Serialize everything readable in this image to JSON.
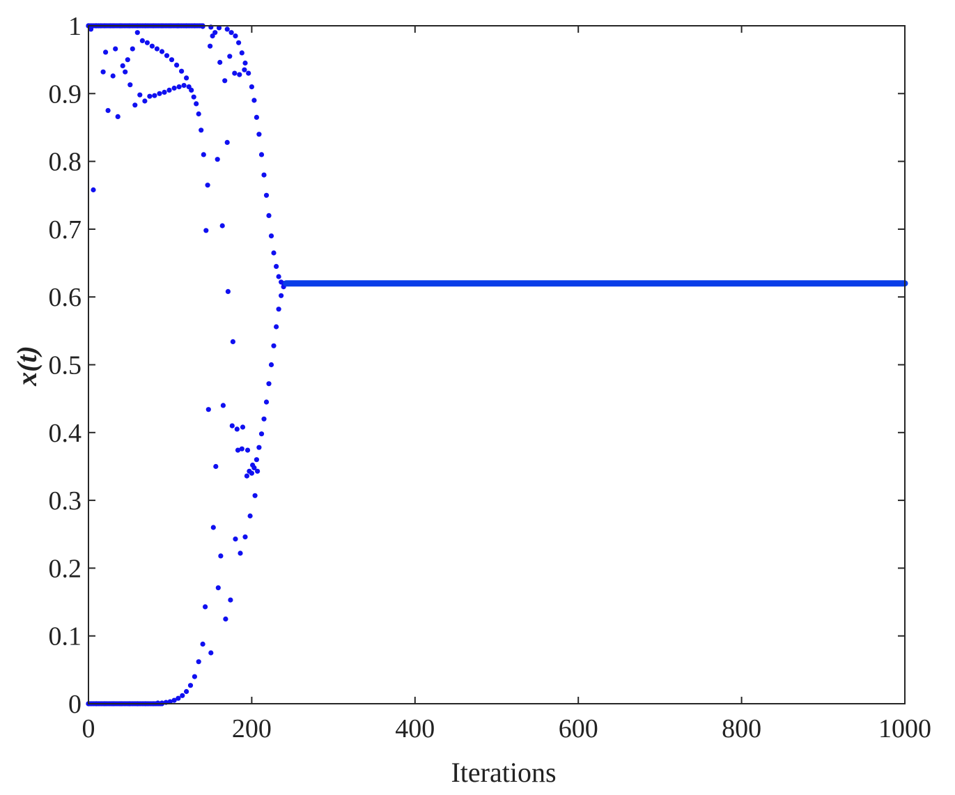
{
  "chart_data": {
    "type": "scatter",
    "title": "",
    "xlabel": "Iterations",
    "ylabel": "x(t)",
    "xlim": [
      0,
      1000
    ],
    "ylim": [
      0,
      1
    ],
    "xticks": [
      0,
      200,
      400,
      600,
      800,
      1000
    ],
    "xtick_labels": [
      "0",
      "200",
      "400",
      "600",
      "800",
      "1000"
    ],
    "yticks": [
      0,
      0.1,
      0.2,
      0.3,
      0.4,
      0.5,
      0.6,
      0.7,
      0.8,
      0.9,
      1
    ],
    "ytick_labels": [
      "0",
      "0.1",
      "0.2",
      "0.3",
      "0.4",
      "0.5",
      "0.6",
      "0.7",
      "0.8",
      "0.9",
      "1"
    ],
    "grid": false,
    "legend": "none",
    "marker_color": "#1010f0",
    "line_color": "#0a3ee8",
    "series": [
      {
        "points": [
          [
            0,
            1.0
          ],
          [
            3,
            0.995
          ],
          [
            6,
            0.758
          ],
          [
            9,
            1.0
          ],
          [
            12,
            1.0
          ],
          [
            15,
            1.0
          ],
          [
            18,
            0.932
          ],
          [
            21,
            0.961
          ],
          [
            24,
            0.875
          ],
          [
            27,
            1.0
          ],
          [
            30,
            0.926
          ],
          [
            33,
            0.966
          ],
          [
            36,
            0.866
          ],
          [
            39,
            1.0
          ],
          [
            42,
            0.941
          ],
          [
            45,
            0.932
          ],
          [
            48,
            0.95
          ],
          [
            51,
            0.913
          ],
          [
            54,
            0.966
          ],
          [
            57,
            0.883
          ],
          [
            60,
            0.99
          ],
          [
            63,
            0.898
          ],
          [
            66,
            0.978
          ],
          [
            69,
            0.889
          ],
          [
            72,
            0.975
          ],
          [
            75,
            0.896
          ],
          [
            78,
            0.97
          ],
          [
            81,
            0.897
          ],
          [
            84,
            0.966
          ],
          [
            87,
            0.9
          ],
          [
            90,
            0.962
          ],
          [
            93,
            0.902
          ],
          [
            96,
            0.956
          ],
          [
            99,
            0.905
          ],
          [
            102,
            0.95
          ],
          [
            105,
            0.908
          ],
          [
            108,
            0.942
          ],
          [
            111,
            0.91
          ],
          [
            114,
            0.933
          ],
          [
            117,
            0.912
          ],
          [
            120,
            0.923
          ],
          [
            123,
            0.91
          ],
          [
            126,
            0.905
          ],
          [
            129,
            0.895
          ],
          [
            132,
            0.885
          ],
          [
            135,
            0.87
          ],
          [
            138,
            0.846
          ],
          [
            141,
            0.81
          ],
          [
            144,
            0.698
          ],
          [
            147,
            0.434
          ],
          [
            150,
            0.075
          ],
          [
            153,
            0.26
          ],
          [
            156,
            0.35
          ],
          [
            159,
            0.171
          ],
          [
            162,
            0.218
          ],
          [
            165,
            0.44
          ],
          [
            168,
            0.125
          ],
          [
            171,
            0.608
          ],
          [
            174,
            0.153
          ],
          [
            177,
            0.534
          ],
          [
            180,
            0.243
          ],
          [
            183,
            0.374
          ],
          [
            186,
            0.222
          ],
          [
            189,
            0.408
          ],
          [
            192,
            0.246
          ],
          [
            195,
            0.374
          ],
          [
            198,
            0.277
          ],
          [
            201,
            0.352
          ],
          [
            204,
            0.307
          ],
          [
            207,
            0.343
          ]
        ]
      },
      {
        "points": [
          [
            0,
            0.0
          ],
          [
            10,
            0.0
          ],
          [
            20,
            0.0
          ],
          [
            30,
            0.0
          ],
          [
            40,
            0.0
          ],
          [
            50,
            0.0
          ],
          [
            60,
            0.0
          ],
          [
            70,
            0.0
          ],
          [
            80,
            0.0
          ],
          [
            85,
            0.001
          ],
          [
            90,
            0.001
          ],
          [
            95,
            0.002
          ],
          [
            100,
            0.003
          ],
          [
            105,
            0.005
          ],
          [
            110,
            0.008
          ],
          [
            115,
            0.012
          ],
          [
            120,
            0.018
          ],
          [
            125,
            0.027
          ],
          [
            130,
            0.04
          ],
          [
            135,
            0.062
          ],
          [
            140,
            0.088
          ],
          [
            143,
            0.143
          ],
          [
            146,
            0.765
          ],
          [
            149,
            0.97
          ],
          [
            152,
            0.985
          ],
          [
            155,
            0.99
          ],
          [
            158,
            0.803
          ],
          [
            161,
            0.946
          ],
          [
            164,
            0.705
          ],
          [
            167,
            0.919
          ],
          [
            170,
            0.828
          ],
          [
            173,
            0.955
          ],
          [
            176,
            0.41
          ],
          [
            179,
            0.93
          ],
          [
            182,
            0.405
          ],
          [
            185,
            0.928
          ],
          [
            188,
            0.376
          ],
          [
            191,
            0.935
          ],
          [
            194,
            0.336
          ],
          [
            197,
            0.343
          ]
        ]
      },
      {
        "points": [
          [
            0,
            1.0
          ],
          [
            10,
            1.0
          ],
          [
            20,
            1.0
          ],
          [
            30,
            1.0
          ],
          [
            40,
            1.0
          ],
          [
            50,
            1.0
          ],
          [
            60,
            1.0
          ],
          [
            70,
            1.0
          ],
          [
            80,
            1.0
          ],
          [
            90,
            1.0
          ],
          [
            100,
            1.0
          ],
          [
            110,
            1.0
          ],
          [
            120,
            1.0
          ],
          [
            130,
            1.0
          ],
          [
            140,
            0.999
          ],
          [
            150,
            0.998
          ],
          [
            160,
            0.997
          ],
          [
            170,
            0.995
          ],
          [
            175,
            0.99
          ],
          [
            180,
            0.985
          ],
          [
            184,
            0.975
          ],
          [
            188,
            0.96
          ],
          [
            192,
            0.945
          ],
          [
            196,
            0.93
          ],
          [
            200,
            0.91
          ],
          [
            203,
            0.89
          ],
          [
            206,
            0.865
          ],
          [
            209,
            0.84
          ],
          [
            212,
            0.81
          ],
          [
            215,
            0.78
          ],
          [
            218,
            0.75
          ],
          [
            221,
            0.72
          ],
          [
            224,
            0.69
          ],
          [
            227,
            0.665
          ],
          [
            230,
            0.645
          ],
          [
            233,
            0.63
          ],
          [
            236,
            0.622
          ],
          [
            239,
            0.62
          ]
        ]
      },
      {
        "points": [
          [
            200,
            0.34
          ],
          [
            203,
            0.348
          ],
          [
            206,
            0.36
          ],
          [
            209,
            0.378
          ],
          [
            212,
            0.398
          ],
          [
            215,
            0.42
          ],
          [
            218,
            0.445
          ],
          [
            221,
            0.472
          ],
          [
            224,
            0.5
          ],
          [
            227,
            0.528
          ],
          [
            230,
            0.556
          ],
          [
            233,
            0.582
          ],
          [
            236,
            0.602
          ],
          [
            239,
            0.615
          ],
          [
            242,
            0.62
          ]
        ]
      },
      {
        "points": [
          [
            242,
            0.62
          ],
          [
            1000,
            0.62
          ]
        ]
      }
    ]
  }
}
